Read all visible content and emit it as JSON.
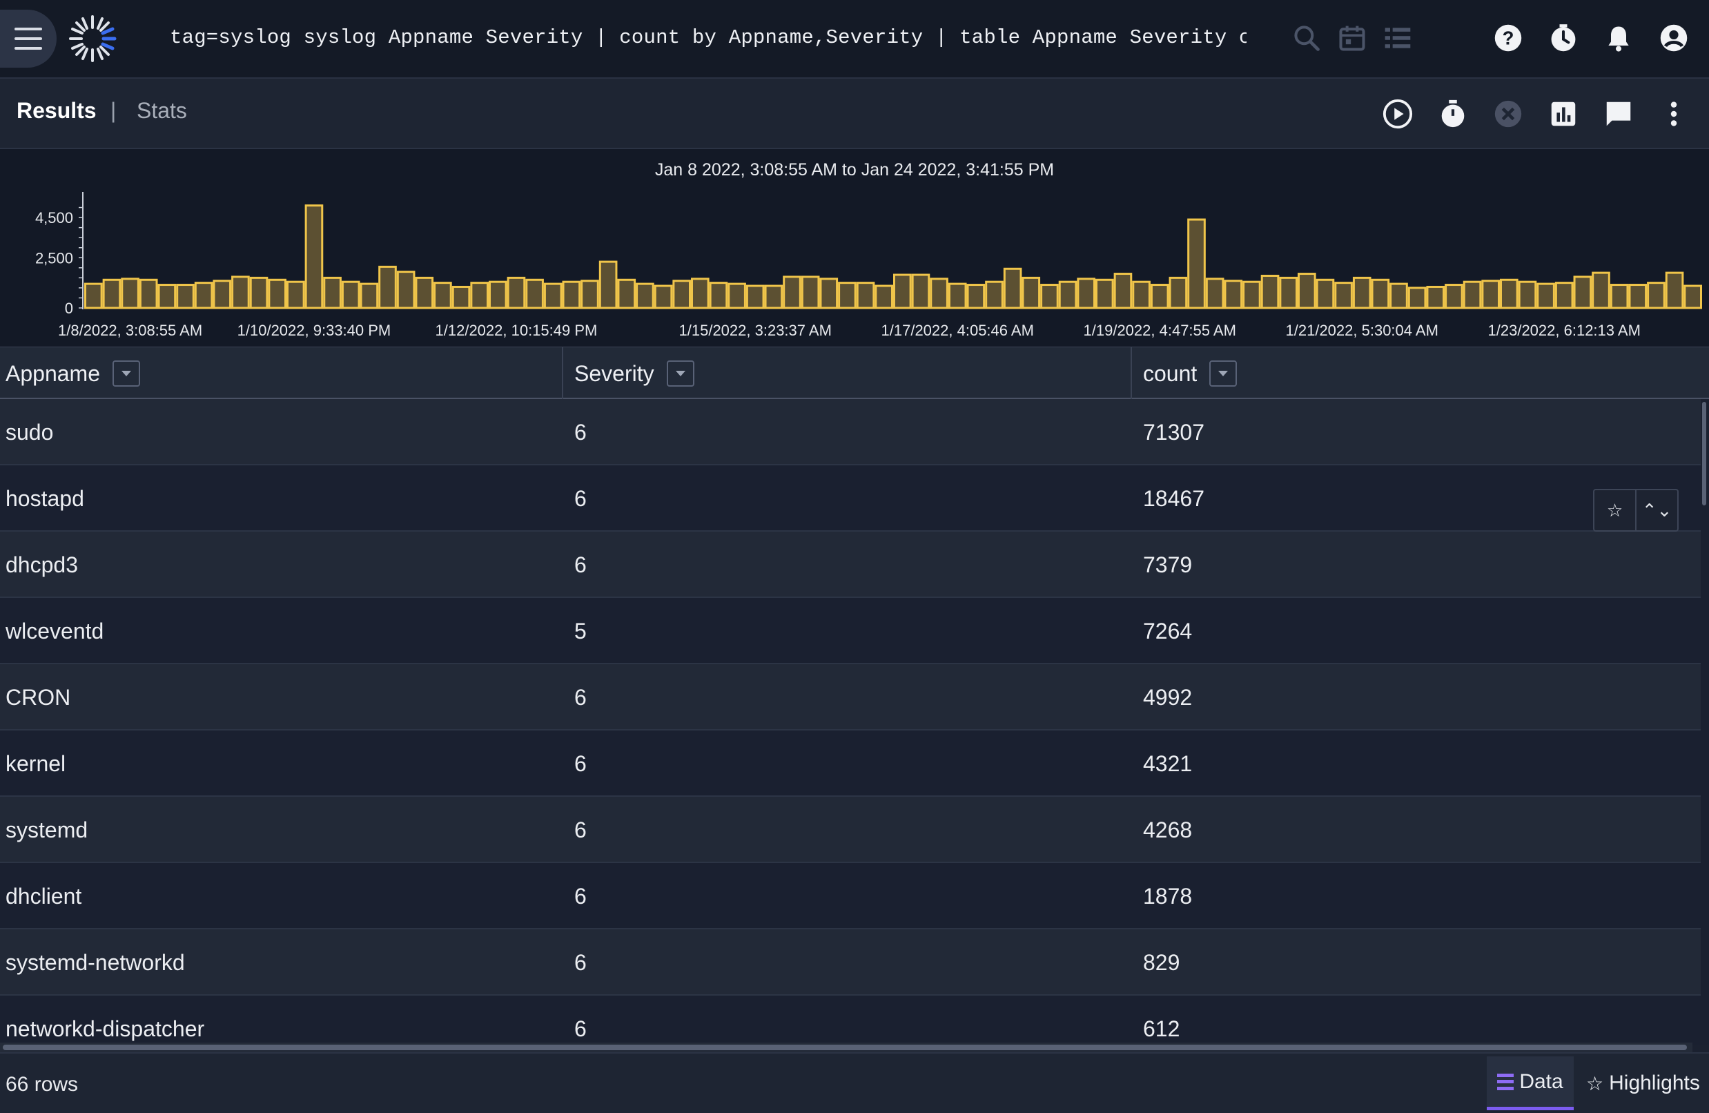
{
  "header": {
    "query": "tag=syslog syslog Appname Severity | count by Appname,Severity | table Appname Severity cou…",
    "icons": [
      "menu-icon",
      "logo-icon",
      "search-icon",
      "calendar-icon",
      "list-icon",
      "help-icon",
      "history-icon",
      "bell-icon",
      "account-icon"
    ]
  },
  "toolbar": {
    "tabs": {
      "results": "Results",
      "separator": "|",
      "stats": "Stats"
    },
    "icons": [
      "run-icon",
      "timer-icon",
      "cancel-icon",
      "chart-icon",
      "comment-icon",
      "more-icon"
    ]
  },
  "chart_data": {
    "type": "bar",
    "title": "Jan 8 2022, 3:08:55 AM to Jan 24 2022, 3:41:55 PM",
    "yticks": [
      "4,500",
      "2,500",
      "0"
    ],
    "ytick_values": [
      4500,
      2500,
      0
    ],
    "ylim": [
      0,
      5500
    ],
    "xtick_labels": [
      "1/8/2022, 3:08:55 AM",
      "1/10/2022, 9:33:40 PM",
      "1/12/2022, 10:15:49 PM",
      "1/15/2022, 3:23:37 AM",
      "1/17/2022, 4:05:46 AM",
      "1/19/2022, 4:47:55 AM",
      "1/21/2022, 5:30:04 AM",
      "1/23/2022, 6:12:13 AM"
    ],
    "xtick_bar_index": [
      2,
      12,
      23,
      36,
      47,
      58,
      69,
      80
    ],
    "values": [
      1200,
      1400,
      1450,
      1400,
      1150,
      1150,
      1250,
      1350,
      1550,
      1500,
      1400,
      1300,
      5100,
      1500,
      1300,
      1200,
      2050,
      1800,
      1500,
      1250,
      1050,
      1250,
      1300,
      1500,
      1400,
      1200,
      1300,
      1350,
      2300,
      1400,
      1200,
      1100,
      1350,
      1450,
      1250,
      1200,
      1100,
      1100,
      1550,
      1550,
      1450,
      1250,
      1250,
      1100,
      1650,
      1650,
      1450,
      1200,
      1150,
      1300,
      1950,
      1500,
      1150,
      1300,
      1450,
      1400,
      1700,
      1300,
      1150,
      1500,
      4400,
      1450,
      1350,
      1300,
      1600,
      1500,
      1700,
      1400,
      1250,
      1500,
      1400,
      1200,
      1000,
      1050,
      1150,
      1300,
      1350,
      1400,
      1300,
      1200,
      1250,
      1550,
      1750,
      1150,
      1150,
      1250,
      1750,
      1100
    ],
    "bar_color": "#f0c54a",
    "bar_fill": "#5c5032"
  },
  "table": {
    "columns": [
      "Appname",
      "Severity",
      "count"
    ],
    "rows": [
      [
        "sudo",
        "6",
        "71307"
      ],
      [
        "hostapd",
        "6",
        "18467"
      ],
      [
        "dhcpd3",
        "6",
        "7379"
      ],
      [
        "wlceventd",
        "5",
        "7264"
      ],
      [
        "CRON",
        "6",
        "4992"
      ],
      [
        "kernel",
        "6",
        "4321"
      ],
      [
        "systemd",
        "6",
        "4268"
      ],
      [
        "dhclient",
        "6",
        "1878"
      ],
      [
        "systemd-networkd",
        "6",
        "829"
      ],
      [
        "networkd-dispatcher",
        "6",
        "612"
      ]
    ],
    "row_actions": [
      "star-icon",
      "expand-icon"
    ]
  },
  "footer": {
    "row_count": "66 rows",
    "data_label": "Data",
    "highlights_label": "Highlights"
  },
  "colors": {
    "accent": "#7c5cf0",
    "bar": "#f0c54a",
    "background": "#1b2130"
  }
}
